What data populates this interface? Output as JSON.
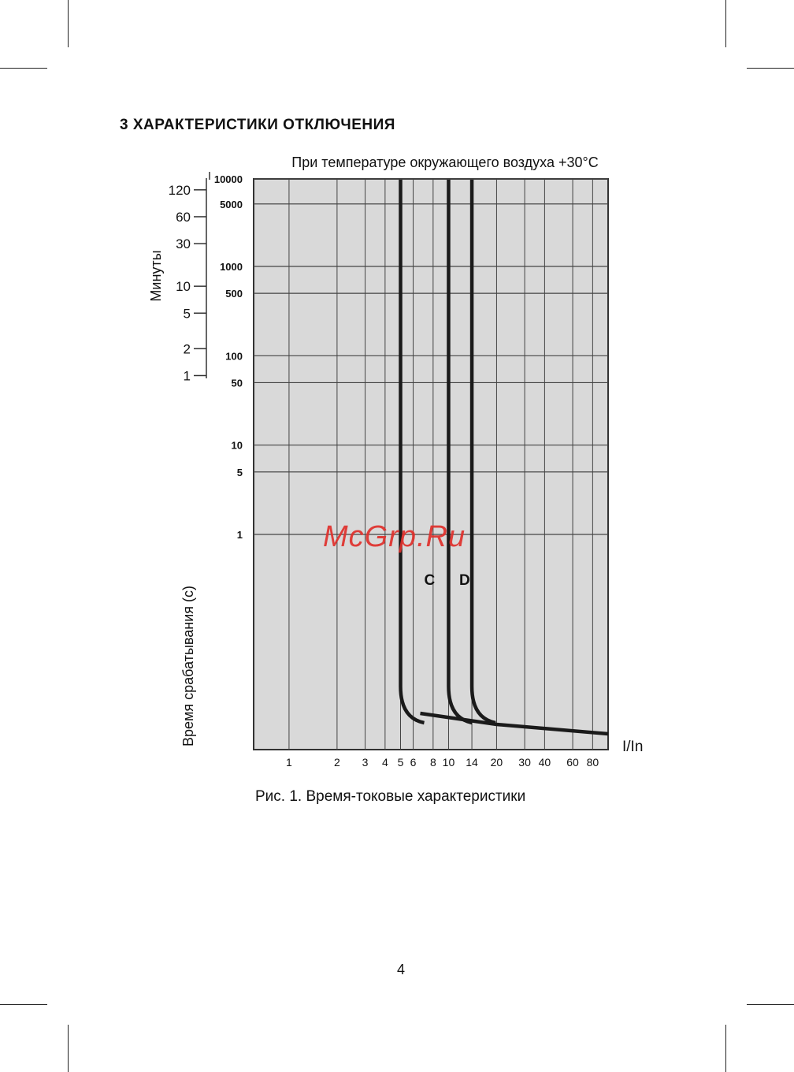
{
  "section": {
    "title": "3 ХАРАКТЕРИСТИКИ ОТКЛЮЧЕНИЯ"
  },
  "figure": {
    "caption": "Рис. 1. Время-токовые характеристики"
  },
  "page": {
    "number": "4"
  },
  "watermark": {
    "text": "McGrp.Ru",
    "color": "#e0302c"
  },
  "colors": {
    "plot_background": "#d9d9d9",
    "grid": "#444444",
    "curve": "#1a1a1a"
  },
  "chart_data": {
    "type": "line",
    "title": "При температуре окружающего воздуха +30°C",
    "xlabel": "I/In",
    "ylabel": "Время срабатывания (с)",
    "ylabel_minutes": "Минуты",
    "x_ticks": [
      "1",
      "2",
      "3",
      "4",
      "5",
      "6",
      "8",
      "10",
      "14",
      "20",
      "30",
      "40",
      "60",
      "80"
    ],
    "y_ticks_seconds": [
      "10000",
      "5000",
      "1000",
      "500",
      "100",
      "50",
      "10",
      "5",
      "1"
    ],
    "y_ticks_minutes": [
      "120",
      "60",
      "30",
      "10",
      "5",
      "2",
      "1"
    ],
    "y_scale": "log",
    "grid": true,
    "series": [
      {
        "name": "C",
        "points": [
          [
            5,
            10000
          ],
          [
            5,
            0.02
          ],
          [
            5.5,
            0.012
          ],
          [
            20,
            0.008
          ],
          [
            80,
            0.006
          ]
        ]
      },
      {
        "name": "",
        "points": [
          [
            10,
            10000
          ],
          [
            10,
            0.02
          ],
          [
            11,
            0.012
          ],
          [
            20,
            0.008
          ]
        ]
      },
      {
        "name": "D",
        "points": [
          [
            14,
            10000
          ],
          [
            14,
            0.02
          ],
          [
            16,
            0.012
          ],
          [
            20,
            0.008
          ]
        ]
      }
    ]
  }
}
